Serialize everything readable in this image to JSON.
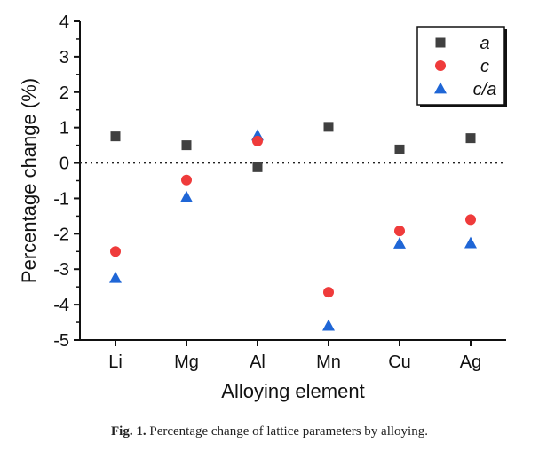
{
  "caption": {
    "label": "Fig. 1.",
    "text": "Percentage change of lattice parameters by alloying."
  },
  "chart_data": {
    "type": "scatter",
    "title": "",
    "xlabel": "Alloying element",
    "ylabel": "Percentage change (%)",
    "categories": [
      "Li",
      "Mg",
      "Al",
      "Mn",
      "Cu",
      "Ag"
    ],
    "ylim": [
      -5,
      4
    ],
    "yticks": [
      "4",
      "3",
      "2",
      "1",
      "0",
      "-1",
      "-2",
      "-3",
      "-4",
      "-5"
    ],
    "grid": false,
    "reference_line": {
      "y": 0,
      "style": "dotted"
    },
    "legend_position": "top-right",
    "series": [
      {
        "name": "a",
        "marker": "square",
        "color": "#404040",
        "values": [
          0.75,
          0.5,
          -0.12,
          1.02,
          0.38,
          0.7
        ]
      },
      {
        "name": "c",
        "marker": "circle",
        "color": "#ef3b3b",
        "values": [
          -2.5,
          -0.48,
          0.62,
          -3.65,
          -1.92,
          -1.6
        ]
      },
      {
        "name": "c/a",
        "marker": "triangle",
        "color": "#1f66d6",
        "values": [
          -3.25,
          -0.97,
          0.77,
          -4.6,
          -2.28,
          -2.27
        ]
      }
    ]
  }
}
